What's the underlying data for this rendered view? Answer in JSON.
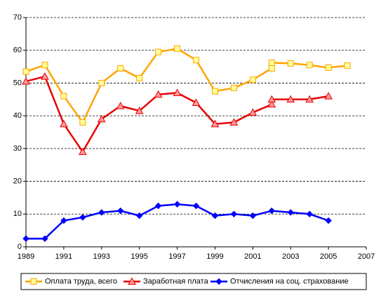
{
  "chart_data": {
    "type": "line",
    "xlim": [
      1989,
      2007
    ],
    "xticks": [
      1989,
      1991,
      1993,
      1995,
      1997,
      1999,
      2001,
      2003,
      2005,
      2007
    ],
    "ylim": [
      0,
      70
    ],
    "yticks": [
      0,
      10,
      20,
      30,
      40,
      50,
      60,
      70
    ],
    "grid": true,
    "series": [
      {
        "name": "Оплата труда, всего",
        "color": "#ffa500",
        "marker": "square",
        "marker_fill": "#ffff99",
        "x": [
          1989,
          1990,
          1991,
          1992,
          1993,
          1994,
          1995,
          1996,
          1997,
          1998,
          1999,
          2000,
          2001,
          2002,
          2002,
          2003,
          2004,
          2005,
          2006
        ],
        "values": [
          53.5,
          55.5,
          46,
          38,
          50,
          54.5,
          51.5,
          59.5,
          60.5,
          57,
          47.5,
          48.5,
          51,
          54.5,
          56.2,
          56,
          55.5,
          54.7,
          55.3
        ]
      },
      {
        "name": "Заработная плата",
        "color": "#e80000",
        "marker": "triangle",
        "marker_fill": "#ff9999",
        "x": [
          1989,
          1990,
          1991,
          1992,
          1993,
          1994,
          1995,
          1996,
          1997,
          1998,
          1999,
          2000,
          2001,
          2002,
          2002,
          2003,
          2004,
          2005
        ],
        "values": [
          50.5,
          52,
          37.5,
          29,
          39,
          43,
          41.5,
          46.5,
          47,
          44,
          37.5,
          38,
          41,
          43.5,
          45,
          45,
          45,
          46
        ]
      },
      {
        "name": "Отчисления на соц. страхование",
        "color": "#0000ff",
        "marker": "diamond",
        "marker_fill": "#0000ff",
        "x": [
          1989,
          1990,
          1991,
          1992,
          1993,
          1994,
          1995,
          1996,
          1997,
          1998,
          1999,
          2000,
          2001,
          2002,
          2003,
          2004,
          2005
        ],
        "values": [
          2.5,
          2.5,
          8,
          9,
          10.5,
          11,
          9.5,
          12.5,
          13,
          12.5,
          9.5,
          10,
          9.5,
          11,
          10.5,
          10,
          8
        ]
      }
    ]
  }
}
